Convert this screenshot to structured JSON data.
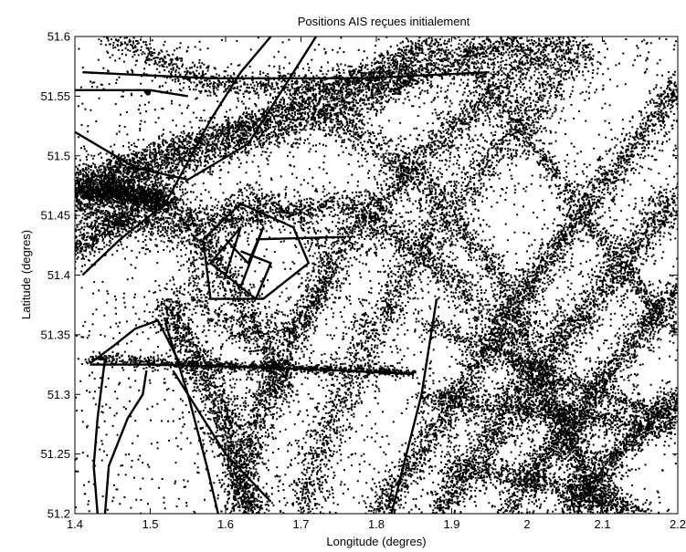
{
  "chart_data": {
    "type": "scatter",
    "title": "Positions AIS reçues initialement",
    "xlabel": "Longitude (degres)",
    "ylabel": "Latitude (degres)",
    "xlim": [
      1.4,
      2.2
    ],
    "ylim": [
      51.2,
      51.6
    ],
    "xticks": [
      1.4,
      1.5,
      1.6,
      1.7,
      1.8,
      1.9,
      2.0,
      2.1,
      2.2
    ],
    "xtick_labels": [
      "1.4",
      "1.5",
      "1.6",
      "1.7",
      "1.8",
      "1.9",
      "2",
      "2.1",
      "2.2"
    ],
    "yticks": [
      51.2,
      51.25,
      51.3,
      51.35,
      51.4,
      51.45,
      51.5,
      51.55,
      51.6
    ],
    "ytick_labels": [
      "51.2",
      "51.25",
      "51.3",
      "51.35",
      "51.4",
      "51.45",
      "51.5",
      "51.55",
      "51.6"
    ],
    "grid": false,
    "marker_color": "#000000",
    "density_clusters": [
      {
        "path": [
          [
            1.4,
            51.47
          ],
          [
            1.55,
            51.5
          ],
          [
            1.75,
            51.54
          ],
          [
            1.9,
            51.58
          ],
          [
            2.0,
            51.6
          ]
        ],
        "spread": 0.014,
        "count": 2600
      },
      {
        "path": [
          [
            1.4,
            51.48
          ],
          [
            1.6,
            51.52
          ],
          [
            1.8,
            51.57
          ],
          [
            1.88,
            51.6
          ]
        ],
        "spread": 0.01,
        "count": 1500
      },
      {
        "path": [
          [
            1.4,
            51.455
          ],
          [
            1.52,
            51.44
          ],
          [
            1.65,
            51.45
          ],
          [
            1.76,
            51.46
          ],
          [
            1.86,
            51.42
          ],
          [
            1.96,
            51.36
          ],
          [
            2.04,
            51.28
          ],
          [
            2.12,
            51.2
          ]
        ],
        "spread": 0.012,
        "count": 2600
      },
      {
        "path": [
          [
            1.72,
            51.54
          ],
          [
            1.86,
            51.48
          ],
          [
            1.96,
            51.4
          ],
          [
            2.02,
            51.32
          ],
          [
            2.06,
            51.25
          ],
          [
            2.09,
            51.2
          ]
        ],
        "spread": 0.011,
        "count": 1600
      },
      {
        "path": [
          [
            1.92,
            51.58
          ],
          [
            2.02,
            51.5
          ],
          [
            2.1,
            51.43
          ],
          [
            2.16,
            51.38
          ],
          [
            2.2,
            51.35
          ]
        ],
        "spread": 0.008,
        "count": 800
      },
      {
        "path": [
          [
            1.8,
            51.2
          ],
          [
            1.89,
            51.28
          ],
          [
            1.97,
            51.36
          ],
          [
            2.07,
            51.45
          ],
          [
            2.17,
            51.53
          ],
          [
            2.2,
            51.56
          ]
        ],
        "spread": 0.011,
        "count": 2400
      },
      {
        "path": [
          [
            1.62,
            51.2
          ],
          [
            1.64,
            51.28
          ],
          [
            1.7,
            51.36
          ],
          [
            1.76,
            51.43
          ],
          [
            1.86,
            51.5
          ],
          [
            2.0,
            51.58
          ],
          [
            2.06,
            51.6
          ]
        ],
        "spread": 0.013,
        "count": 2600
      },
      {
        "path": [
          [
            1.7,
            51.2
          ],
          [
            1.74,
            51.28
          ],
          [
            1.8,
            51.36
          ],
          [
            1.88,
            51.44
          ],
          [
            1.98,
            51.52
          ],
          [
            2.08,
            51.59
          ]
        ],
        "spread": 0.016,
        "count": 2000
      },
      {
        "path": [
          [
            1.88,
            51.2
          ],
          [
            1.96,
            51.27
          ],
          [
            2.05,
            51.35
          ],
          [
            2.14,
            51.42
          ],
          [
            2.2,
            51.47
          ]
        ],
        "spread": 0.014,
        "count": 2200
      },
      {
        "path": [
          [
            1.97,
            51.2
          ],
          [
            2.04,
            51.26
          ],
          [
            2.11,
            51.32
          ],
          [
            2.2,
            51.39
          ]
        ],
        "spread": 0.012,
        "count": 1500
      },
      {
        "path": [
          [
            2.05,
            51.2
          ],
          [
            2.12,
            51.25
          ],
          [
            2.2,
            51.3
          ]
        ],
        "spread": 0.01,
        "count": 900
      },
      {
        "path": [
          [
            1.86,
            51.3
          ],
          [
            1.96,
            51.29
          ],
          [
            2.08,
            51.28
          ],
          [
            2.2,
            51.27
          ]
        ],
        "spread": 0.009,
        "count": 900
      },
      {
        "path": [
          [
            1.86,
            51.36
          ],
          [
            1.98,
            51.33
          ],
          [
            2.1,
            51.3
          ],
          [
            2.2,
            51.28
          ]
        ],
        "spread": 0.008,
        "count": 700
      },
      {
        "path": [
          [
            1.9,
            51.24
          ],
          [
            2.0,
            51.23
          ],
          [
            2.1,
            51.21
          ],
          [
            2.16,
            51.2
          ]
        ],
        "spread": 0.009,
        "count": 700
      },
      {
        "path": [
          [
            1.42,
            51.33
          ],
          [
            1.55,
            51.325
          ],
          [
            1.7,
            51.322
          ],
          [
            1.85,
            51.318
          ]
        ],
        "spread": 0.004,
        "count": 900
      },
      {
        "path": [
          [
            1.52,
            51.38
          ],
          [
            1.56,
            51.33
          ],
          [
            1.6,
            51.28
          ],
          [
            1.62,
            51.22
          ],
          [
            1.64,
            51.2
          ]
        ],
        "spread": 0.012,
        "count": 1400
      },
      {
        "path": [
          [
            1.49,
            51.48
          ],
          [
            1.56,
            51.44
          ],
          [
            1.62,
            51.38
          ],
          [
            1.66,
            51.33
          ],
          [
            1.68,
            51.3
          ]
        ],
        "spread": 0.012,
        "count": 1000
      },
      {
        "path": [
          [
            1.45,
            51.6
          ],
          [
            1.58,
            51.56
          ],
          [
            1.72,
            51.56
          ],
          [
            1.85,
            51.57
          ]
        ],
        "spread": 0.01,
        "count": 900
      },
      {
        "path": [
          [
            1.56,
            51.42
          ],
          [
            1.63,
            51.47
          ],
          [
            1.7,
            51.45
          ],
          [
            1.74,
            51.4
          ],
          [
            1.71,
            51.36
          ],
          [
            1.62,
            51.35
          ],
          [
            1.56,
            51.38
          ],
          [
            1.56,
            51.42
          ]
        ],
        "spread": 0.008,
        "count": 700
      },
      {
        "path": [
          [
            1.4,
            51.42
          ],
          [
            1.44,
            51.44
          ],
          [
            1.48,
            51.45
          ]
        ],
        "spread": 0.012,
        "count": 500
      },
      {
        "path": [
          [
            1.4,
            51.47
          ],
          [
            1.46,
            51.47
          ],
          [
            1.52,
            51.46
          ]
        ],
        "spread": 0.01,
        "count": 1500
      }
    ],
    "background_points": 2600,
    "tracks": [
      {
        "points": [
          [
            1.42,
            51.325
          ],
          [
            1.5,
            51.325
          ],
          [
            1.62,
            51.323
          ],
          [
            1.75,
            51.32
          ],
          [
            1.85,
            51.317
          ]
        ]
      },
      {
        "points": [
          [
            1.42,
            51.326
          ],
          [
            1.45,
            51.34
          ],
          [
            1.48,
            51.355
          ],
          [
            1.51,
            51.362
          ],
          [
            1.52,
            51.35
          ],
          [
            1.54,
            51.325
          ]
        ]
      },
      {
        "points": [
          [
            1.44,
            51.2
          ],
          [
            1.445,
            51.24
          ],
          [
            1.47,
            51.28
          ],
          [
            1.49,
            51.3
          ],
          [
            1.495,
            51.32
          ]
        ]
      },
      {
        "points": [
          [
            1.44,
            51.33
          ],
          [
            1.43,
            51.28
          ],
          [
            1.425,
            51.24
          ],
          [
            1.43,
            51.2
          ]
        ]
      },
      {
        "points": [
          [
            1.52,
            51.36
          ],
          [
            1.55,
            51.3
          ],
          [
            1.575,
            51.24
          ],
          [
            1.59,
            51.2
          ]
        ]
      },
      {
        "points": [
          [
            1.4,
            51.52
          ],
          [
            1.48,
            51.49
          ],
          [
            1.55,
            51.48
          ],
          [
            1.63,
            51.51
          ],
          [
            1.7,
            51.58
          ],
          [
            1.72,
            51.6
          ]
        ]
      },
      {
        "points": [
          [
            1.41,
            51.4
          ],
          [
            1.46,
            51.43
          ],
          [
            1.52,
            51.46
          ],
          [
            1.58,
            51.53
          ],
          [
            1.62,
            51.57
          ],
          [
            1.66,
            51.6
          ]
        ]
      },
      {
        "points": [
          [
            1.6,
            51.43
          ],
          [
            1.63,
            51.41
          ],
          [
            1.65,
            51.44
          ],
          [
            1.62,
            51.39
          ],
          [
            1.58,
            51.41
          ],
          [
            1.62,
            51.44
          ],
          [
            1.6,
            51.4
          ],
          [
            1.64,
            51.38
          ],
          [
            1.66,
            51.41
          ],
          [
            1.62,
            51.42
          ]
        ]
      },
      {
        "points": [
          [
            1.57,
            51.43
          ],
          [
            1.62,
            51.46
          ],
          [
            1.69,
            51.44
          ],
          [
            1.71,
            51.41
          ],
          [
            1.65,
            51.38
          ],
          [
            1.58,
            51.38
          ],
          [
            1.57,
            51.43
          ]
        ]
      },
      {
        "points": [
          [
            1.64,
            51.43
          ],
          [
            1.76,
            51.432
          ]
        ]
      },
      {
        "points": [
          [
            1.41,
            51.57
          ],
          [
            1.58,
            51.565
          ],
          [
            1.78,
            51.565
          ],
          [
            1.95,
            51.57
          ]
        ]
      },
      {
        "points": [
          [
            1.4,
            51.555
          ],
          [
            1.5,
            51.555
          ],
          [
            1.55,
            51.55
          ]
        ]
      },
      {
        "points": [
          [
            1.53,
            51.32
          ],
          [
            1.6,
            51.25
          ],
          [
            1.66,
            51.21
          ]
        ]
      },
      {
        "points": [
          [
            1.82,
            51.2
          ],
          [
            1.86,
            51.3
          ],
          [
            1.88,
            51.38
          ]
        ]
      }
    ],
    "markers": [
      {
        "x": 1.497,
        "y": 51.553
      }
    ]
  }
}
